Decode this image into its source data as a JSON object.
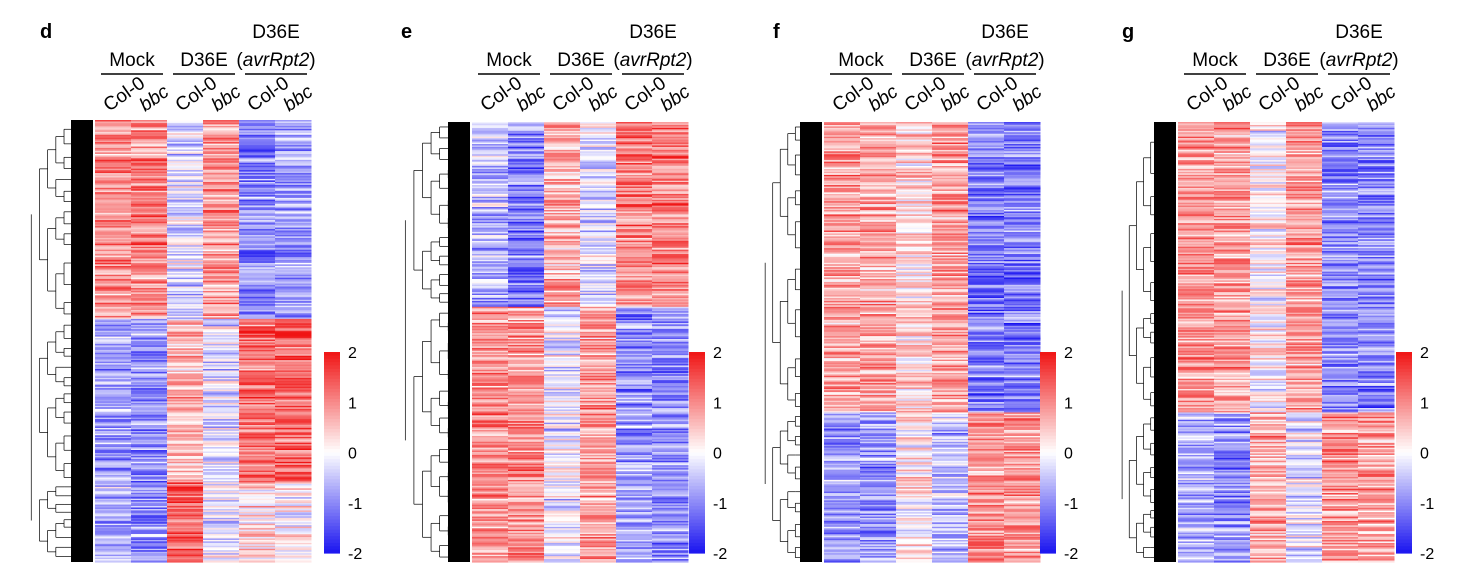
{
  "colors": {
    "low": "#1a14f0",
    "mid": "#ffffff",
    "high": "#f01414",
    "dendrogram": "#000000"
  },
  "chart_data": [
    {
      "type": "heatmap",
      "panel": "d",
      "groups": [
        {
          "label": "Mock",
          "italic_part": ""
        },
        {
          "label": "D36E",
          "italic_part": ""
        },
        {
          "label": "D36E",
          "italic_part": "avrRpt2"
        }
      ],
      "columns": [
        "Col-0",
        "bbc",
        "Col-0",
        "bbc",
        "Col-0",
        "bbc"
      ],
      "clusters": [
        {
          "rows": 0.45,
          "pattern": [
            0.9,
            1.0,
            -0.3,
            0.9,
            -1.0,
            -0.8
          ]
        },
        {
          "rows": 0.37,
          "pattern": [
            -0.8,
            -0.9,
            0.6,
            -0.3,
            1.2,
            1.3
          ]
        },
        {
          "rows": 0.18,
          "pattern": [
            -0.6,
            -0.9,
            1.4,
            -0.2,
            0.3,
            0.1
          ]
        }
      ],
      "colorbar": {
        "ticks": [
          "2",
          "1",
          "0",
          "-1",
          "-2"
        ],
        "range": [
          -2,
          2
        ]
      }
    },
    {
      "type": "heatmap",
      "panel": "e",
      "groups": [
        {
          "label": "Mock",
          "italic_part": ""
        },
        {
          "label": "D36E",
          "italic_part": ""
        },
        {
          "label": "D36E",
          "italic_part": "avrRpt2"
        }
      ],
      "columns": [
        "Col-0",
        "bbc",
        "Col-0",
        "bbc",
        "Col-0",
        "bbc"
      ],
      "clusters": [
        {
          "rows": 0.42,
          "pattern": [
            -0.6,
            -1.1,
            0.7,
            -0.3,
            1.0,
            1.1
          ]
        },
        {
          "rows": 0.58,
          "pattern": [
            0.9,
            0.9,
            -0.2,
            0.8,
            -0.9,
            -1.0
          ]
        }
      ],
      "colorbar": {
        "ticks": [
          "2",
          "1",
          "0",
          "-1",
          "-2"
        ],
        "range": [
          -2,
          2
        ]
      }
    },
    {
      "type": "heatmap",
      "panel": "f",
      "groups": [
        {
          "label": "Mock",
          "italic_part": ""
        },
        {
          "label": "D36E",
          "italic_part": ""
        },
        {
          "label": "D36E",
          "italic_part": "avrRpt2"
        }
      ],
      "columns": [
        "Col-0",
        "bbc",
        "Col-0",
        "bbc",
        "Col-0",
        "bbc"
      ],
      "clusters": [
        {
          "rows": 0.66,
          "pattern": [
            0.8,
            0.7,
            0.3,
            0.8,
            -1.1,
            -1.1
          ]
        },
        {
          "rows": 0.34,
          "pattern": [
            -0.8,
            -0.9,
            0.1,
            -0.6,
            0.9,
            0.9
          ]
        }
      ],
      "colorbar": {
        "ticks": [
          "2",
          "1",
          "0",
          "-1",
          "-2"
        ],
        "range": [
          -2,
          2
        ]
      }
    },
    {
      "type": "heatmap",
      "panel": "g",
      "groups": [
        {
          "label": "Mock",
          "italic_part": ""
        },
        {
          "label": "D36E",
          "italic_part": ""
        },
        {
          "label": "D36E",
          "italic_part": "avrRpt2"
        }
      ],
      "columns": [
        "Col-0",
        "bbc",
        "Col-0",
        "bbc",
        "Col-0",
        "bbc"
      ],
      "clusters": [
        {
          "rows": 0.66,
          "pattern": [
            0.9,
            0.8,
            0.0,
            0.8,
            -1.0,
            -1.0
          ]
        },
        {
          "rows": 0.34,
          "pattern": [
            -0.7,
            -0.9,
            0.7,
            -0.2,
            0.9,
            0.8
          ]
        }
      ],
      "colorbar": {
        "ticks": [
          "2",
          "1",
          "0",
          "-1",
          "-2"
        ],
        "range": [
          -2,
          2
        ]
      }
    }
  ]
}
